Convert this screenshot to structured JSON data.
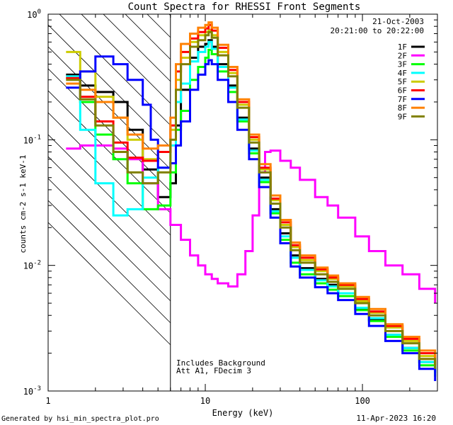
{
  "chart_data": {
    "type": "line",
    "title": "Count Spectra for RHESSI Front Segments",
    "xlabel": "Energy (keV)",
    "ylabel": "counts cm-2 s-1 keV-1",
    "xscale": "log",
    "yscale": "log",
    "xlim": [
      1,
      300
    ],
    "ylim": [
      0.001,
      1
    ],
    "x_tick_labels": [
      "1",
      "10",
      "100"
    ],
    "y_tick_labels": [
      {
        "base": "10",
        "exp": "0",
        "value": 1
      },
      {
        "base": "10",
        "exp": "-1",
        "value": 0.1
      },
      {
        "base": "10",
        "exp": "-2",
        "value": 0.01
      },
      {
        "base": "10",
        "exp": "-3",
        "value": 0.001
      }
    ],
    "date": "21-Oct-2003",
    "time_range": "20:21:00 to 20:22:00",
    "annotation_lines": [
      "Includes Background",
      "Att A1, FDecim 3"
    ],
    "attenuator_threshold_keV": 6,
    "series": [
      {
        "name": "1F",
        "color": "#000000",
        "points": [
          [
            1.3,
            0.33
          ],
          [
            1.6,
            0.27
          ],
          [
            2,
            0.24
          ],
          [
            2.6,
            0.2
          ],
          [
            3.2,
            0.12
          ],
          [
            4,
            0.058
          ],
          [
            5,
            0.035
          ],
          [
            6,
            0.045
          ],
          [
            6.5,
            0.13
          ],
          [
            7,
            0.25
          ],
          [
            8,
            0.45
          ],
          [
            9,
            0.55
          ],
          [
            10,
            0.58
          ],
          [
            10.5,
            0.62
          ],
          [
            11,
            0.55
          ],
          [
            12,
            0.4
          ],
          [
            14,
            0.27
          ],
          [
            16,
            0.15
          ],
          [
            19,
            0.085
          ],
          [
            22,
            0.05
          ],
          [
            26,
            0.028
          ],
          [
            30,
            0.018
          ],
          [
            35,
            0.012
          ],
          [
            40,
            0.0095
          ],
          [
            50,
            0.0078
          ],
          [
            60,
            0.007
          ],
          [
            70,
            0.006
          ],
          [
            90,
            0.0045
          ],
          [
            110,
            0.0037
          ],
          [
            140,
            0.0028
          ],
          [
            180,
            0.0022
          ],
          [
            230,
            0.0017
          ],
          [
            290,
            0.0014
          ]
        ]
      },
      {
        "name": "2F",
        "color": "#ff00ff",
        "points": [
          [
            1.3,
            0.085
          ],
          [
            1.6,
            0.09
          ],
          [
            2,
            0.09
          ],
          [
            2.6,
            0.085
          ],
          [
            3.2,
            0.07
          ],
          [
            4,
            0.045
          ],
          [
            5,
            0.028
          ],
          [
            6,
            0.021
          ],
          [
            7,
            0.016
          ],
          [
            8,
            0.012
          ],
          [
            9,
            0.01
          ],
          [
            10,
            0.0085
          ],
          [
            11,
            0.0078
          ],
          [
            12,
            0.0072
          ],
          [
            14,
            0.0068
          ],
          [
            16,
            0.0085
          ],
          [
            18,
            0.013
          ],
          [
            20,
            0.025
          ],
          [
            22,
            0.055
          ],
          [
            24,
            0.08
          ],
          [
            26,
            0.082
          ],
          [
            30,
            0.068
          ],
          [
            35,
            0.06
          ],
          [
            40,
            0.048
          ],
          [
            50,
            0.035
          ],
          [
            60,
            0.03
          ],
          [
            70,
            0.024
          ],
          [
            90,
            0.017
          ],
          [
            110,
            0.013
          ],
          [
            140,
            0.01
          ],
          [
            180,
            0.0085
          ],
          [
            230,
            0.0065
          ],
          [
            290,
            0.005
          ]
        ]
      },
      {
        "name": "3F",
        "color": "#00ff00",
        "points": [
          [
            1.3,
            0.31
          ],
          [
            1.6,
            0.2
          ],
          [
            2,
            0.11
          ],
          [
            2.6,
            0.07
          ],
          [
            3.2,
            0.045
          ],
          [
            4,
            0.028
          ],
          [
            5,
            0.03
          ],
          [
            6,
            0.055
          ],
          [
            6.5,
            0.12
          ],
          [
            7,
            0.17
          ],
          [
            8,
            0.3
          ],
          [
            9,
            0.38
          ],
          [
            10,
            0.45
          ],
          [
            10.5,
            0.52
          ],
          [
            11,
            0.48
          ],
          [
            12,
            0.35
          ],
          [
            14,
            0.24
          ],
          [
            16,
            0.14
          ],
          [
            19,
            0.078
          ],
          [
            22,
            0.046
          ],
          [
            26,
            0.026
          ],
          [
            30,
            0.016
          ],
          [
            35,
            0.0105
          ],
          [
            40,
            0.0085
          ],
          [
            50,
            0.0072
          ],
          [
            60,
            0.0064
          ],
          [
            70,
            0.0057
          ],
          [
            90,
            0.0044
          ],
          [
            110,
            0.0036
          ],
          [
            140,
            0.0027
          ],
          [
            180,
            0.0021
          ],
          [
            230,
            0.0016
          ],
          [
            290,
            0.0013
          ]
        ]
      },
      {
        "name": "4F",
        "color": "#00ffff",
        "points": [
          [
            1.3,
            0.32
          ],
          [
            1.6,
            0.12
          ],
          [
            2,
            0.045
          ],
          [
            2.6,
            0.025
          ],
          [
            3.2,
            0.028
          ],
          [
            4,
            0.05
          ],
          [
            5,
            0.06
          ],
          [
            6,
            0.09
          ],
          [
            6.5,
            0.2
          ],
          [
            7,
            0.28
          ],
          [
            8,
            0.42
          ],
          [
            9,
            0.5
          ],
          [
            10,
            0.55
          ],
          [
            10.5,
            0.6
          ],
          [
            11,
            0.53
          ],
          [
            12,
            0.38
          ],
          [
            14,
            0.26
          ],
          [
            16,
            0.145
          ],
          [
            19,
            0.082
          ],
          [
            22,
            0.048
          ],
          [
            26,
            0.027
          ],
          [
            30,
            0.017
          ],
          [
            35,
            0.0115
          ],
          [
            40,
            0.0092
          ],
          [
            50,
            0.0076
          ],
          [
            60,
            0.0068
          ],
          [
            70,
            0.006
          ],
          [
            90,
            0.0046
          ],
          [
            110,
            0.0038
          ],
          [
            140,
            0.0028
          ],
          [
            180,
            0.0022
          ],
          [
            230,
            0.0017
          ],
          [
            290,
            0.0014
          ]
        ]
      },
      {
        "name": "5F",
        "color": "#cccc00",
        "points": [
          [
            1.3,
            0.5
          ],
          [
            1.6,
            0.35
          ],
          [
            2,
            0.22
          ],
          [
            2.6,
            0.15
          ],
          [
            3.2,
            0.1
          ],
          [
            4,
            0.07
          ],
          [
            5,
            0.08
          ],
          [
            6,
            0.12
          ],
          [
            6.5,
            0.3
          ],
          [
            7,
            0.45
          ],
          [
            8,
            0.6
          ],
          [
            9,
            0.68
          ],
          [
            10,
            0.72
          ],
          [
            10.5,
            0.75
          ],
          [
            11,
            0.68
          ],
          [
            12,
            0.5
          ],
          [
            14,
            0.34
          ],
          [
            16,
            0.19
          ],
          [
            19,
            0.1
          ],
          [
            22,
            0.058
          ],
          [
            26,
            0.033
          ],
          [
            30,
            0.021
          ],
          [
            35,
            0.014
          ],
          [
            40,
            0.011
          ],
          [
            50,
            0.009
          ],
          [
            60,
            0.0078
          ],
          [
            70,
            0.0068
          ],
          [
            90,
            0.0052
          ],
          [
            110,
            0.0042
          ],
          [
            140,
            0.0032
          ],
          [
            180,
            0.0025
          ],
          [
            230,
            0.0019
          ],
          [
            290,
            0.0016
          ]
        ]
      },
      {
        "name": "6F",
        "color": "#ff0000",
        "points": [
          [
            1.3,
            0.31
          ],
          [
            1.6,
            0.22
          ],
          [
            2,
            0.14
          ],
          [
            2.6,
            0.095
          ],
          [
            3.2,
            0.072
          ],
          [
            4,
            0.068
          ],
          [
            5,
            0.08
          ],
          [
            6,
            0.13
          ],
          [
            6.5,
            0.35
          ],
          [
            7,
            0.5
          ],
          [
            8,
            0.64
          ],
          [
            9,
            0.72
          ],
          [
            10,
            0.77
          ],
          [
            10.5,
            0.82
          ],
          [
            11,
            0.74
          ],
          [
            12,
            0.54
          ],
          [
            14,
            0.36
          ],
          [
            16,
            0.2
          ],
          [
            19,
            0.105
          ],
          [
            22,
            0.06
          ],
          [
            26,
            0.034
          ],
          [
            30,
            0.022
          ],
          [
            35,
            0.0145
          ],
          [
            40,
            0.0115
          ],
          [
            50,
            0.0093
          ],
          [
            60,
            0.008
          ],
          [
            70,
            0.007
          ],
          [
            90,
            0.0054
          ],
          [
            110,
            0.0043
          ],
          [
            140,
            0.0033
          ],
          [
            180,
            0.0026
          ],
          [
            230,
            0.002
          ],
          [
            290,
            0.0016
          ]
        ]
      },
      {
        "name": "7F",
        "color": "#0000ff",
        "points": [
          [
            1.3,
            0.26
          ],
          [
            1.6,
            0.35
          ],
          [
            2,
            0.46
          ],
          [
            2.6,
            0.4
          ],
          [
            3.2,
            0.3
          ],
          [
            4,
            0.19
          ],
          [
            4.5,
            0.1
          ],
          [
            5,
            0.06
          ],
          [
            6,
            0.065
          ],
          [
            6.5,
            0.09
          ],
          [
            7,
            0.14
          ],
          [
            8,
            0.25
          ],
          [
            9,
            0.33
          ],
          [
            10,
            0.4
          ],
          [
            10.5,
            0.43
          ],
          [
            11,
            0.4
          ],
          [
            12,
            0.3
          ],
          [
            14,
            0.2
          ],
          [
            16,
            0.12
          ],
          [
            19,
            0.07
          ],
          [
            22,
            0.042
          ],
          [
            26,
            0.024
          ],
          [
            30,
            0.015
          ],
          [
            35,
            0.0098
          ],
          [
            40,
            0.008
          ],
          [
            50,
            0.0067
          ],
          [
            60,
            0.006
          ],
          [
            70,
            0.0053
          ],
          [
            90,
            0.0041
          ],
          [
            110,
            0.0033
          ],
          [
            140,
            0.0025
          ],
          [
            180,
            0.002
          ],
          [
            230,
            0.0015
          ],
          [
            290,
            0.0012
          ]
        ]
      },
      {
        "name": "8F",
        "color": "#ff8000",
        "points": [
          [
            1.3,
            0.28
          ],
          [
            1.6,
            0.25
          ],
          [
            2,
            0.2
          ],
          [
            2.6,
            0.15
          ],
          [
            3.2,
            0.11
          ],
          [
            4,
            0.085
          ],
          [
            5,
            0.09
          ],
          [
            6,
            0.15
          ],
          [
            6.5,
            0.4
          ],
          [
            7,
            0.58
          ],
          [
            8,
            0.7
          ],
          [
            9,
            0.78
          ],
          [
            10,
            0.82
          ],
          [
            10.5,
            0.86
          ],
          [
            11,
            0.78
          ],
          [
            12,
            0.57
          ],
          [
            14,
            0.38
          ],
          [
            16,
            0.21
          ],
          [
            19,
            0.11
          ],
          [
            22,
            0.064
          ],
          [
            26,
            0.036
          ],
          [
            30,
            0.023
          ],
          [
            35,
            0.0152
          ],
          [
            40,
            0.012
          ],
          [
            50,
            0.0096
          ],
          [
            60,
            0.0083
          ],
          [
            70,
            0.0072
          ],
          [
            90,
            0.0056
          ],
          [
            110,
            0.0045
          ],
          [
            140,
            0.0034
          ],
          [
            180,
            0.0027
          ],
          [
            230,
            0.0021
          ],
          [
            290,
            0.0017
          ]
        ]
      },
      {
        "name": "9F",
        "color": "#808000",
        "points": [
          [
            1.3,
            0.3
          ],
          [
            1.6,
            0.21
          ],
          [
            2,
            0.13
          ],
          [
            2.6,
            0.08
          ],
          [
            3.2,
            0.055
          ],
          [
            4,
            0.045
          ],
          [
            5,
            0.055
          ],
          [
            6,
            0.1
          ],
          [
            6.5,
            0.25
          ],
          [
            7,
            0.4
          ],
          [
            8,
            0.55
          ],
          [
            9,
            0.62
          ],
          [
            10,
            0.68
          ],
          [
            10.5,
            0.72
          ],
          [
            11,
            0.65
          ],
          [
            12,
            0.47
          ],
          [
            14,
            0.32
          ],
          [
            16,
            0.18
          ],
          [
            19,
            0.095
          ],
          [
            22,
            0.055
          ],
          [
            26,
            0.031
          ],
          [
            30,
            0.02
          ],
          [
            35,
            0.0132
          ],
          [
            40,
            0.0105
          ],
          [
            50,
            0.0085
          ],
          [
            60,
            0.0074
          ],
          [
            70,
            0.0065
          ],
          [
            90,
            0.005
          ],
          [
            110,
            0.004
          ],
          [
            140,
            0.003
          ],
          [
            180,
            0.0024
          ],
          [
            230,
            0.0018
          ],
          [
            290,
            0.0015
          ]
        ]
      }
    ]
  },
  "footer": {
    "generated_by": "Generated by hsi_min_spectra_plot.pro",
    "timestamp": "11-Apr-2023 16:20"
  }
}
